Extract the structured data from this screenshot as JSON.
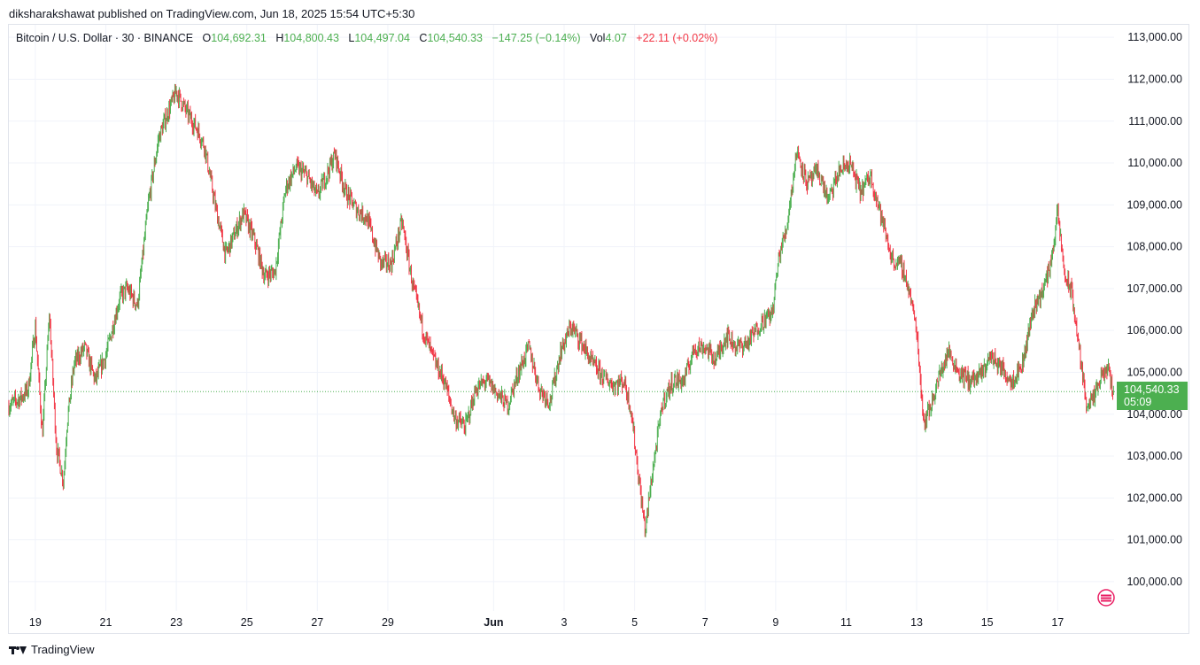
{
  "header": {
    "publisher_line": "diksharakshawat published on TradingView.com, Jun 18, 2025 15:54 UTC+5:30"
  },
  "legend": {
    "symbol": "Bitcoin / U.S. Dollar · 30 · BINANCE",
    "o_label": "O",
    "o_value": "104,692.31",
    "h_label": "H",
    "h_value": "104,800.43",
    "l_label": "L",
    "l_value": "104,497.04",
    "c_label": "C",
    "c_value": "104,540.33",
    "change": "−147.25 (−0.14%)",
    "vol_label": "Vol",
    "vol_value": "4.07",
    "vol_change": "+22.11 (+0.02%)"
  },
  "price_badge": {
    "price": "104,540.33",
    "countdown": "05:09"
  },
  "footer": {
    "brand": "TradingView"
  },
  "colors": {
    "up": "#4caf50",
    "down": "#f23645",
    "grid": "#f0f3fa",
    "axis_text": "#131722"
  },
  "chart_data": {
    "type": "candlestick",
    "symbol": "Bitcoin / U.S. Dollar",
    "interval": "30",
    "exchange": "BINANCE",
    "ylim": [
      99300,
      113300
    ],
    "y_ticks": [
      100000,
      101000,
      102000,
      103000,
      104000,
      105000,
      106000,
      107000,
      108000,
      109000,
      110000,
      111000,
      112000,
      113000
    ],
    "y_tick_labels": [
      "100,000.00",
      "101,000.00",
      "102,000.00",
      "103,000.00",
      "104,000.00",
      "105,000.00",
      "106,000.00",
      "107,000.00",
      "108,000.00",
      "109,000.00",
      "110,000.00",
      "111,000.00",
      "112,000.00",
      "113,000.00"
    ],
    "x_ticks": [
      "19",
      "21",
      "23",
      "25",
      "27",
      "29",
      "Jun",
      "3",
      "5",
      "7",
      "9",
      "11",
      "13",
      "15",
      "17"
    ],
    "x_tick_days": [
      1,
      3,
      5,
      7,
      9,
      11,
      14,
      16,
      18,
      20,
      22,
      24,
      26,
      28,
      30
    ],
    "x_range_days": [
      0.25,
      31.6
    ],
    "last_price": 104540.33,
    "price_path": [
      [
        0.25,
        104200
      ],
      [
        0.6,
        104400
      ],
      [
        0.8,
        104600
      ],
      [
        1.0,
        106100
      ],
      [
        1.2,
        103500
      ],
      [
        1.4,
        106400
      ],
      [
        1.6,
        103200
      ],
      [
        1.8,
        102400
      ],
      [
        1.9,
        103800
      ],
      [
        2.1,
        105200
      ],
      [
        2.4,
        105600
      ],
      [
        2.7,
        104800
      ],
      [
        3.0,
        105400
      ],
      [
        3.4,
        106800
      ],
      [
        3.6,
        107000
      ],
      [
        3.9,
        106600
      ],
      [
        4.2,
        109000
      ],
      [
        4.5,
        110600
      ],
      [
        4.8,
        111300
      ],
      [
        5.0,
        111700
      ],
      [
        5.3,
        111200
      ],
      [
        5.6,
        110800
      ],
      [
        5.8,
        110400
      ],
      [
        6.1,
        109000
      ],
      [
        6.4,
        107800
      ],
      [
        6.7,
        108400
      ],
      [
        6.9,
        108800
      ],
      [
        7.2,
        108200
      ],
      [
        7.5,
        107300
      ],
      [
        7.8,
        107400
      ],
      [
        8.1,
        109400
      ],
      [
        8.4,
        109900
      ],
      [
        8.7,
        109700
      ],
      [
        9.0,
        109200
      ],
      [
        9.3,
        109800
      ],
      [
        9.5,
        110200
      ],
      [
        9.8,
        109300
      ],
      [
        10.1,
        108900
      ],
      [
        10.4,
        108700
      ],
      [
        10.8,
        107600
      ],
      [
        11.1,
        107600
      ],
      [
        11.4,
        108600
      ],
      [
        11.7,
        107100
      ],
      [
        12.0,
        106000
      ],
      [
        12.3,
        105300
      ],
      [
        12.6,
        104800
      ],
      [
        12.9,
        103900
      ],
      [
        13.2,
        103700
      ],
      [
        13.5,
        104600
      ],
      [
        13.8,
        104800
      ],
      [
        14.1,
        104500
      ],
      [
        14.4,
        104200
      ],
      [
        14.7,
        105000
      ],
      [
        15.0,
        105600
      ],
      [
        15.3,
        104600
      ],
      [
        15.6,
        104300
      ],
      [
        15.9,
        105500
      ],
      [
        16.2,
        106100
      ],
      [
        16.5,
        105700
      ],
      [
        16.8,
        105200
      ],
      [
        17.1,
        104900
      ],
      [
        17.4,
        104700
      ],
      [
        17.7,
        104800
      ],
      [
        17.9,
        104100
      ],
      [
        18.1,
        102600
      ],
      [
        18.3,
        101200
      ],
      [
        18.5,
        102600
      ],
      [
        18.8,
        104300
      ],
      [
        19.1,
        104800
      ],
      [
        19.4,
        104800
      ],
      [
        19.7,
        105600
      ],
      [
        20.0,
        105600
      ],
      [
        20.3,
        105300
      ],
      [
        20.6,
        105900
      ],
      [
        20.9,
        105600
      ],
      [
        21.2,
        105700
      ],
      [
        21.6,
        106200
      ],
      [
        21.9,
        106400
      ],
      [
        22.1,
        107800
      ],
      [
        22.3,
        108400
      ],
      [
        22.6,
        110300
      ],
      [
        22.9,
        109500
      ],
      [
        23.2,
        109800
      ],
      [
        23.5,
        109100
      ],
      [
        23.8,
        109800
      ],
      [
        24.1,
        110000
      ],
      [
        24.4,
        109300
      ],
      [
        24.7,
        109700
      ],
      [
        25.0,
        108700
      ],
      [
        25.3,
        107700
      ],
      [
        25.6,
        107500
      ],
      [
        25.8,
        106900
      ],
      [
        26.0,
        106000
      ],
      [
        26.2,
        103800
      ],
      [
        26.4,
        104200
      ],
      [
        26.6,
        104800
      ],
      [
        26.9,
        105500
      ],
      [
        27.2,
        105000
      ],
      [
        27.5,
        104800
      ],
      [
        27.8,
        104900
      ],
      [
        28.1,
        105400
      ],
      [
        28.4,
        105100
      ],
      [
        28.7,
        104800
      ],
      [
        29.0,
        105200
      ],
      [
        29.3,
        106500
      ],
      [
        29.6,
        107000
      ],
      [
        29.8,
        107600
      ],
      [
        30.0,
        108800
      ],
      [
        30.2,
        107300
      ],
      [
        30.4,
        106900
      ],
      [
        30.6,
        105600
      ],
      [
        30.8,
        104300
      ],
      [
        31.0,
        104300
      ],
      [
        31.2,
        104800
      ],
      [
        31.4,
        105100
      ],
      [
        31.6,
        104540
      ]
    ],
    "y_axis_side": "right",
    "grid": true
  }
}
